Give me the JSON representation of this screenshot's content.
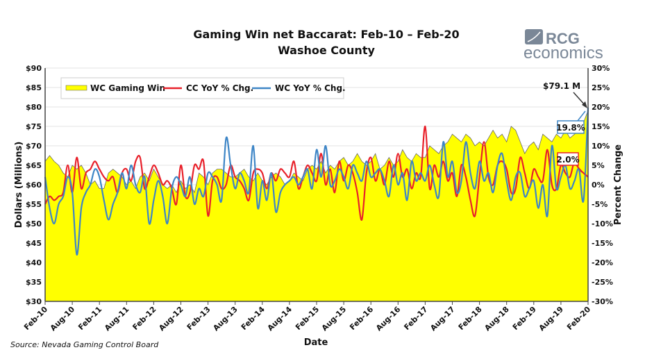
{
  "chart_data": {
    "type": "area+line",
    "title": "Gaming Win net Baccarat: Feb-10 – Feb-20",
    "subtitle": "Washoe County",
    "xlabel": "Date",
    "ylabel_left": "Dollars (Millions)",
    "ylabel_right": "Percent Change",
    "source": "Source: Nevada Gaming Control Board",
    "logo_text": [
      "RCG",
      "economics"
    ],
    "ylim_left": [
      30,
      90
    ],
    "ylim_right": [
      -30,
      30
    ],
    "left_ticks": [
      "$30",
      "$35",
      "$40",
      "$45",
      "$50",
      "$55",
      "$60",
      "$65",
      "$70",
      "$75",
      "$80",
      "$85",
      "$90"
    ],
    "right_ticks": [
      "-30%",
      "-25%",
      "-20%",
      "-15%",
      "-10%",
      "-5%",
      "0%",
      "5%",
      "10%",
      "15%",
      "20%",
      "25%",
      "30%"
    ],
    "x_ticks": [
      "Feb-10",
      "Aug-10",
      "Feb-11",
      "Aug-11",
      "Feb-12",
      "Aug-12",
      "Feb-13",
      "Aug-13",
      "Feb-14",
      "Aug-14",
      "Feb-15",
      "Aug-15",
      "Feb-16",
      "Aug-16",
      "Feb-17",
      "Aug-17",
      "Feb-18",
      "Aug-18",
      "Feb-19",
      "Aug-19",
      "Feb-20"
    ],
    "x_start": "Feb-10",
    "x_end": "Feb-20",
    "grid": true,
    "legend_placement": "top-left",
    "annotations": {
      "win_last": "$79.1 M",
      "wc_last": "19.8%",
      "cc_last": "2.0%"
    },
    "series": [
      {
        "name": "WC Gaming Win",
        "axis": "left",
        "kind": "area",
        "color": "#ffff00",
        "values": [
          66,
          67.5,
          66,
          65,
          63,
          62,
          65,
          64,
          65,
          63,
          60,
          61,
          59,
          59,
          63,
          64,
          63,
          62,
          60,
          61,
          59,
          62,
          63,
          61,
          64,
          62,
          60,
          59,
          60,
          58,
          61,
          59,
          60,
          58,
          63,
          62,
          60,
          63,
          64,
          64,
          63,
          62,
          62,
          63,
          64,
          62,
          61,
          63,
          61,
          60,
          62,
          63,
          62,
          60,
          61,
          63,
          62,
          61,
          64,
          65,
          64,
          66,
          63,
          65,
          64,
          66,
          67,
          65,
          66,
          68,
          66,
          65,
          66,
          68,
          64,
          65,
          67,
          65,
          66,
          69,
          67,
          66,
          68,
          67,
          67,
          70,
          69,
          68,
          70,
          71,
          73,
          72,
          71,
          73,
          72,
          70,
          71,
          70,
          72,
          74,
          72,
          73,
          71,
          75,
          74,
          71,
          68,
          70,
          71,
          69,
          73,
          72,
          71,
          73,
          72,
          74,
          72,
          73,
          74,
          76,
          79.1
        ]
      },
      {
        "name": "CC YoY % Chg.",
        "axis": "right",
        "kind": "line",
        "color": "#e8202a",
        "values": [
          -5,
          -3,
          -4,
          -3,
          -2,
          5,
          -2,
          7,
          -1,
          3,
          4,
          6,
          4,
          2,
          1,
          2,
          -2,
          3,
          4,
          1,
          6,
          7,
          -1,
          2,
          5,
          3,
          0,
          1,
          -1,
          -5,
          5,
          -3,
          -2,
          5,
          4,
          6,
          -8,
          1,
          2,
          -1,
          0,
          5,
          2,
          1,
          -1,
          -4,
          3,
          4,
          3,
          -1,
          3,
          1,
          4,
          3,
          2,
          6,
          -1,
          2,
          5,
          3,
          1,
          8,
          0,
          4,
          -2,
          6,
          1,
          5,
          3,
          -2,
          -9,
          3,
          7,
          1,
          4,
          0,
          6,
          2,
          8,
          2,
          4,
          -1,
          3,
          2,
          15,
          -1,
          5,
          2,
          6,
          1,
          3,
          -3,
          5,
          2,
          -4,
          -8,
          2,
          11,
          2,
          0,
          5,
          6,
          4,
          -2,
          -1,
          7,
          3,
          -1,
          4,
          2,
          1,
          9,
          0,
          -1,
          5,
          3,
          2,
          6,
          4,
          3,
          2.0
        ]
      },
      {
        "name": "WC YoY % Chg.",
        "axis": "right",
        "kind": "line",
        "color": "#3d85c6",
        "values": [
          2,
          -6,
          -10,
          -5,
          -3,
          2,
          -2,
          -18,
          -6,
          -2,
          0,
          4,
          2,
          -4,
          -9,
          -5,
          -2,
          3,
          -1,
          5,
          0,
          -2,
          2,
          -10,
          -4,
          1,
          -3,
          -10,
          -1,
          2,
          0,
          -3,
          2,
          -5,
          -1,
          -3,
          3,
          2,
          0,
          -4,
          12,
          5,
          -1,
          3,
          1,
          -2,
          10,
          -6,
          1,
          -4,
          3,
          -7,
          -2,
          0,
          1,
          2,
          0,
          2,
          4,
          -1,
          9,
          2,
          10,
          0,
          1,
          4,
          2,
          -1,
          5,
          3,
          1,
          6,
          2,
          3,
          4,
          1,
          -3,
          5,
          0,
          3,
          -4,
          6,
          1,
          3,
          1,
          5,
          0,
          -3,
          11,
          2,
          6,
          -2,
          1,
          11,
          3,
          -1,
          6,
          1,
          3,
          -2,
          5,
          8,
          1,
          -4,
          2,
          3,
          -3,
          -1,
          1,
          -6,
          0,
          -8,
          10,
          -1,
          2,
          5,
          -1,
          1,
          4,
          -4,
          19.8
        ]
      }
    ]
  }
}
